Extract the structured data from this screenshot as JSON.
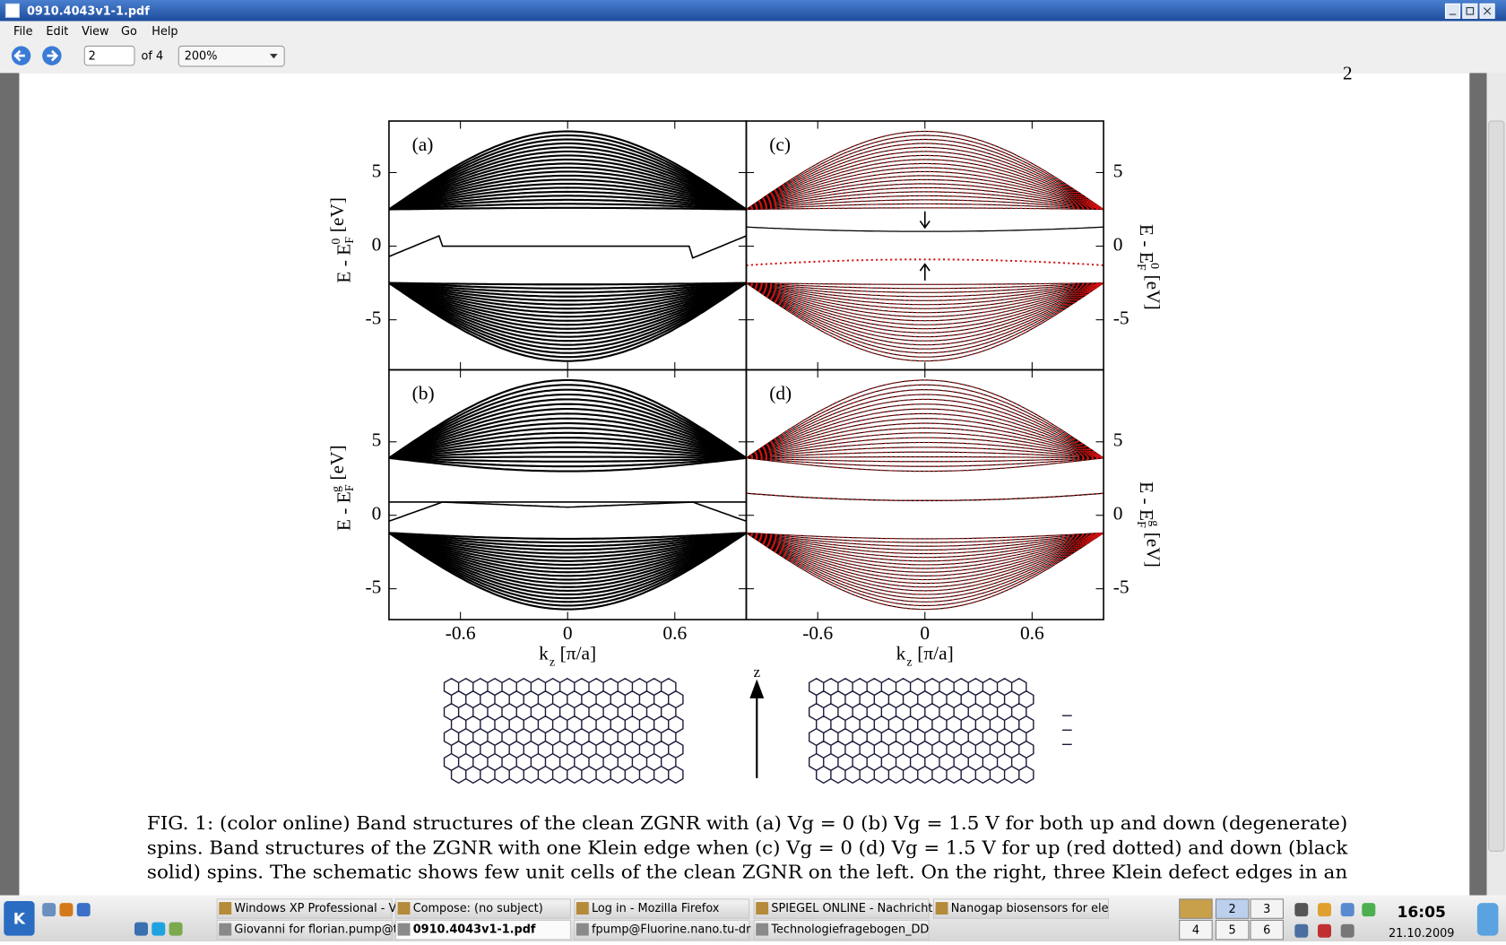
{
  "window": {
    "title": "0910.4043v1-1.pdf"
  },
  "menu": [
    "File",
    "Edit",
    "View",
    "Go",
    "Help"
  ],
  "toolbar": {
    "page": "2",
    "page_count": "of 4",
    "zoom": "200%"
  },
  "page_fragment": "2",
  "figure": {
    "panel_labels": [
      "(a)",
      "(b)",
      "(c)",
      "(d)"
    ],
    "xlim": [
      -1,
      1
    ],
    "xticks": [
      -0.6,
      0,
      0.6
    ],
    "ylim_top": [
      -8.4,
      8.5
    ],
    "ylim_bottom": [
      -7.1,
      9.9
    ],
    "yticks": [
      -5,
      0,
      5
    ],
    "y_label_top": [
      "E - E",
      "F",
      "0",
      "[eV]"
    ],
    "y_label_bottom": [
      "E - E",
      "F",
      "g",
      "[eV]"
    ],
    "x_label": [
      "k",
      "z",
      "[π/a]"
    ],
    "schematic_axis": "z"
  },
  "caption": [
    "FIG. 1: (color online) Band structures of the clean ZGNR with (a) Vg = 0 (b) Vg = 1.5 V for both up and down (degenerate)",
    "spins. Band structures of the ZGNR with one Klein edge when (c) Vg = 0 (d) Vg = 1.5 V for up (red dotted) and down (black",
    "solid) spins. The schematic shows few unit cells of the clean ZGNR on the left. On the right, three Klein defect edges in an"
  ],
  "taskbar": {
    "tasks_row1": [
      "Windows XP Professional - V",
      "Compose: (no subject)",
      "Log in - Mozilla Firefox",
      "SPIEGEL ONLINE - Nachricht",
      "Nanogap biosensors for ele"
    ],
    "tasks_row2": [
      "Giovanni for florian.pump@t",
      "0910.4043v1-1.pdf",
      "fpump@Fluorine.nano.tu-dr",
      "Technologiefragebogen_DD"
    ],
    "desktops": [
      "2",
      "3",
      "4",
      "5",
      "6"
    ],
    "time": "16:05",
    "date": "21.10.2009"
  }
}
